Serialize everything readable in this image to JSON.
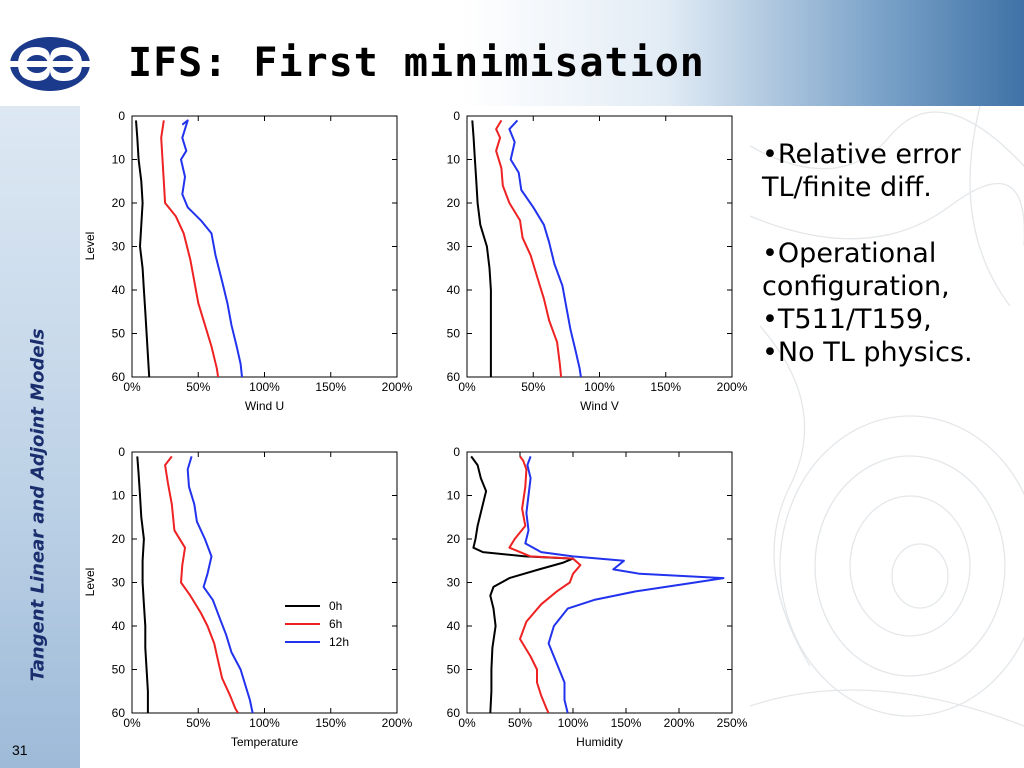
{
  "slide": {
    "title": "IFS: First minimisation",
    "side_title": "Tangent Linear and Adjoint Models",
    "page_number": "31",
    "bullets": [
      "•Relative error",
      "TL/finite diff.",
      "•Operational",
      "configuration,",
      "•T511/T159,",
      "•No TL physics."
    ],
    "colors": {
      "header_gradient_end": "#3f72a6",
      "sidebar": "#bcd1e6",
      "side_title": "#1a2e6e",
      "logo": "#1b3a8c"
    },
    "icons": [
      "ecmwf-logo-icon"
    ]
  },
  "chart_data": [
    {
      "type": "line",
      "xlabel": "Wind U",
      "ylabel": "Level",
      "xlim": [
        0,
        200
      ],
      "ylim": [
        60,
        0
      ],
      "x_tick_labels": [
        "0%",
        "50%",
        "100%",
        "150%",
        "200%"
      ],
      "y_tick_labels": [
        "0",
        "10",
        "20",
        "30",
        "40",
        "50",
        "60"
      ],
      "grid": false,
      "series": [
        {
          "color": "#000000",
          "points": [
            [
              3,
              1
            ],
            [
              4,
              5
            ],
            [
              5,
              10
            ],
            [
              7,
              15
            ],
            [
              8,
              20
            ],
            [
              7,
              25
            ],
            [
              6,
              30
            ],
            [
              8,
              35
            ],
            [
              9,
              40
            ],
            [
              10,
              45
            ],
            [
              11,
              50
            ],
            [
              12,
              55
            ],
            [
              13,
              60
            ]
          ]
        },
        {
          "color": "#ee2222",
          "points": [
            [
              24,
              1
            ],
            [
              22,
              5
            ],
            [
              23,
              10
            ],
            [
              24,
              15
            ],
            [
              25,
              20
            ],
            [
              33,
              23
            ],
            [
              39,
              27
            ],
            [
              44,
              33
            ],
            [
              47,
              38
            ],
            [
              50,
              43
            ],
            [
              55,
              48
            ],
            [
              60,
              53
            ],
            [
              64,
              58
            ],
            [
              65,
              60
            ]
          ]
        },
        {
          "color": "#2233ee",
          "points": [
            [
              38,
              2
            ],
            [
              42,
              1
            ],
            [
              38,
              5
            ],
            [
              41,
              8
            ],
            [
              37,
              10
            ],
            [
              40,
              14
            ],
            [
              38,
              18
            ],
            [
              42,
              21
            ],
            [
              52,
              24
            ],
            [
              60,
              27
            ],
            [
              63,
              32
            ],
            [
              68,
              38
            ],
            [
              72,
              43
            ],
            [
              75,
              48
            ],
            [
              79,
              53
            ],
            [
              82,
              57
            ],
            [
              83,
              60
            ]
          ]
        }
      ]
    },
    {
      "type": "line",
      "xlabel": "Wind V",
      "ylabel": "",
      "xlim": [
        0,
        200
      ],
      "ylim": [
        60,
        0
      ],
      "x_tick_labels": [
        "0%",
        "50%",
        "100%",
        "150%",
        "200%"
      ],
      "y_tick_labels": [
        "0",
        "10",
        "20",
        "30",
        "40",
        "50",
        "60"
      ],
      "grid": false,
      "series": [
        {
          "color": "#000000",
          "points": [
            [
              4,
              1
            ],
            [
              5,
              5
            ],
            [
              6,
              10
            ],
            [
              7,
              15
            ],
            [
              8,
              20
            ],
            [
              10,
              25
            ],
            [
              15,
              30
            ],
            [
              17,
              35
            ],
            [
              18,
              40
            ],
            [
              18,
              45
            ],
            [
              18,
              50
            ],
            [
              18,
              55
            ],
            [
              18,
              60
            ]
          ]
        },
        {
          "color": "#ee2222",
          "points": [
            [
              26,
              1
            ],
            [
              22,
              3
            ],
            [
              25,
              5
            ],
            [
              22,
              8
            ],
            [
              26,
              12
            ],
            [
              27,
              16
            ],
            [
              32,
              20
            ],
            [
              40,
              24
            ],
            [
              42,
              28
            ],
            [
              48,
              32
            ],
            [
              53,
              37
            ],
            [
              58,
              42
            ],
            [
              62,
              47
            ],
            [
              68,
              52
            ],
            [
              70,
              57
            ],
            [
              71,
              60
            ]
          ]
        },
        {
          "color": "#2233ee",
          "points": [
            [
              38,
              1
            ],
            [
              32,
              3
            ],
            [
              36,
              6
            ],
            [
              33,
              10
            ],
            [
              39,
              13
            ],
            [
              41,
              17
            ],
            [
              50,
              21
            ],
            [
              58,
              25
            ],
            [
              62,
              29
            ],
            [
              66,
              34
            ],
            [
              72,
              39
            ],
            [
              75,
              44
            ],
            [
              78,
              49
            ],
            [
              82,
              54
            ],
            [
              85,
              58
            ],
            [
              86,
              60
            ]
          ]
        }
      ]
    },
    {
      "type": "line",
      "xlabel": "Temperature",
      "ylabel": "Level",
      "xlim": [
        0,
        200
      ],
      "ylim": [
        60,
        0
      ],
      "x_tick_labels": [
        "0%",
        "50%",
        "100%",
        "150%",
        "200%"
      ],
      "y_tick_labels": [
        "0",
        "10",
        "20",
        "30",
        "40",
        "50",
        "60"
      ],
      "grid": false,
      "series": [
        {
          "color": "#000000",
          "points": [
            [
              4,
              1
            ],
            [
              5,
              5
            ],
            [
              6,
              10
            ],
            [
              7,
              15
            ],
            [
              9,
              20
            ],
            [
              8,
              25
            ],
            [
              8,
              30
            ],
            [
              9,
              35
            ],
            [
              10,
              40
            ],
            [
              10,
              45
            ],
            [
              11,
              50
            ],
            [
              12,
              55
            ],
            [
              12,
              60
            ]
          ]
        },
        {
          "color": "#ee2222",
          "points": [
            [
              30,
              1
            ],
            [
              25,
              3
            ],
            [
              27,
              7
            ],
            [
              30,
              12
            ],
            [
              32,
              18
            ],
            [
              40,
              22
            ],
            [
              38,
              26
            ],
            [
              37,
              30
            ],
            [
              44,
              33
            ],
            [
              52,
              37
            ],
            [
              57,
              40
            ],
            [
              62,
              44
            ],
            [
              65,
              48
            ],
            [
              68,
              52
            ],
            [
              74,
              56
            ],
            [
              78,
              59
            ],
            [
              80,
              60
            ]
          ]
        },
        {
          "color": "#2233ee",
          "points": [
            [
              45,
              1
            ],
            [
              42,
              4
            ],
            [
              43,
              8
            ],
            [
              47,
              12
            ],
            [
              49,
              16
            ],
            [
              55,
              20
            ],
            [
              60,
              24
            ],
            [
              57,
              28
            ],
            [
              54,
              31
            ],
            [
              61,
              34
            ],
            [
              66,
              38
            ],
            [
              71,
              42
            ],
            [
              75,
              46
            ],
            [
              82,
              50
            ],
            [
              86,
              54
            ],
            [
              89,
              57
            ],
            [
              91,
              60
            ]
          ]
        }
      ]
    },
    {
      "type": "line",
      "xlabel": "Humidity",
      "ylabel": "",
      "xlim": [
        0,
        250
      ],
      "ylim": [
        60,
        0
      ],
      "x_tick_labels": [
        "0%",
        "50%",
        "100%",
        "150%",
        "200%",
        "250%"
      ],
      "y_tick_labels": [
        "0",
        "10",
        "20",
        "30",
        "40",
        "50",
        "60"
      ],
      "grid": false,
      "series": [
        {
          "color": "#000000",
          "points": [
            [
              4,
              1
            ],
            [
              10,
              3
            ],
            [
              13,
              6
            ],
            [
              18,
              9
            ],
            [
              14,
              13
            ],
            [
              10,
              17
            ],
            [
              8,
              20
            ],
            [
              6,
              22
            ],
            [
              15,
              23
            ],
            [
              55,
              24
            ],
            [
              100,
              24.5
            ],
            [
              90,
              25.5
            ],
            [
              68,
              27
            ],
            [
              40,
              29
            ],
            [
              25,
              31
            ],
            [
              22,
              33
            ],
            [
              25,
              36
            ],
            [
              27,
              40
            ],
            [
              24,
              45
            ],
            [
              23,
              50
            ],
            [
              23,
              55
            ],
            [
              22,
              60
            ]
          ]
        },
        {
          "color": "#ee2222",
          "points": [
            [
              50,
              1
            ],
            [
              53,
              2
            ],
            [
              56,
              4
            ],
            [
              55,
              8
            ],
            [
              52,
              13
            ],
            [
              55,
              17
            ],
            [
              45,
              20
            ],
            [
              40,
              22
            ],
            [
              60,
              24
            ],
            [
              100,
              24.5
            ],
            [
              107,
              26
            ],
            [
              100,
              28
            ],
            [
              97,
              30
            ],
            [
              85,
              32
            ],
            [
              70,
              35
            ],
            [
              56,
              39
            ],
            [
              50,
              43
            ],
            [
              60,
              47
            ],
            [
              66,
              50
            ],
            [
              66,
              53
            ],
            [
              70,
              56
            ],
            [
              75,
              59
            ],
            [
              77,
              60
            ]
          ]
        },
        {
          "color": "#2233ee",
          "points": [
            [
              60,
              1
            ],
            [
              57,
              3
            ],
            [
              60,
              6
            ],
            [
              58,
              10
            ],
            [
              56,
              14
            ],
            [
              58,
              18
            ],
            [
              55,
              21
            ],
            [
              70,
              23
            ],
            [
              100,
              24
            ],
            [
              148,
              25
            ],
            [
              138,
              27
            ],
            [
              163,
              28
            ],
            [
              242,
              29
            ],
            [
              215,
              30
            ],
            [
              160,
              32
            ],
            [
              120,
              34
            ],
            [
              95,
              36
            ],
            [
              82,
              40
            ],
            [
              77,
              44
            ],
            [
              82,
              47
            ],
            [
              87,
              50
            ],
            [
              92,
              53
            ],
            [
              92,
              57
            ],
            [
              95,
              60
            ]
          ]
        }
      ]
    }
  ],
  "legend": {
    "position": "inside-lower-right of Temperature panel",
    "entries": [
      {
        "label": "0h",
        "color": "#000000"
      },
      {
        "label": "6h",
        "color": "#ee2222"
      },
      {
        "label": "12h",
        "color": "#2233ee"
      }
    ]
  }
}
